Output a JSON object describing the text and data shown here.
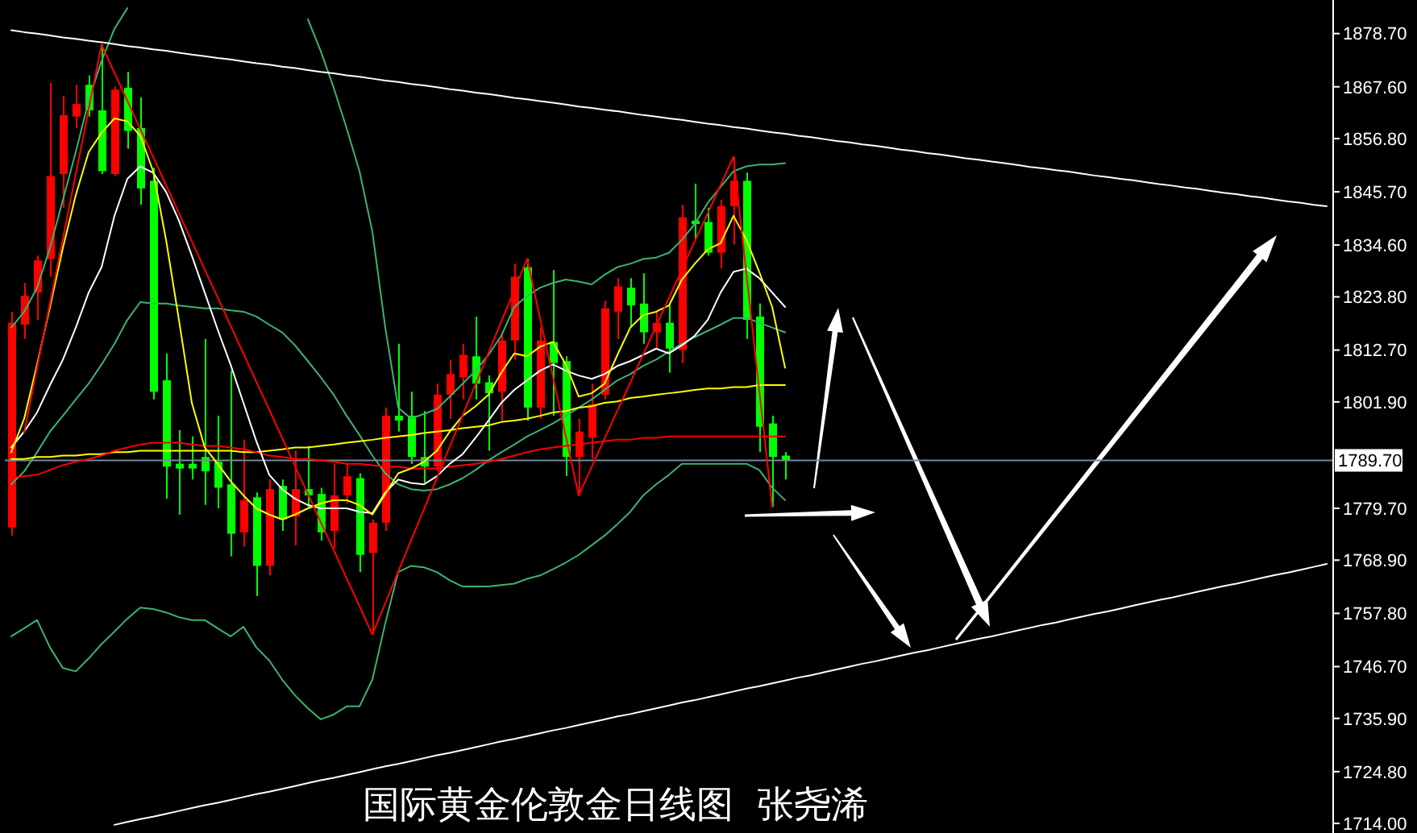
{
  "chart_data": {
    "type": "candlestick",
    "title": "国际黄金伦敦金日线图  张尧浠",
    "categories": [
      null,
      null,
      null,
      null,
      null,
      null,
      null,
      null,
      null,
      null,
      null,
      null,
      null,
      null,
      null,
      null,
      null,
      null,
      null,
      null,
      null,
      null,
      null,
      null,
      null,
      null,
      null,
      null,
      null,
      null,
      null,
      null,
      null,
      null,
      null,
      null,
      null,
      null,
      null,
      null,
      null,
      null,
      null,
      null,
      null,
      null,
      null,
      null,
      null,
      null,
      null,
      null,
      null,
      null,
      null,
      null,
      null,
      null,
      null,
      null,
      null,
      null,
      null,
      null,
      null,
      null,
      null,
      null,
      null,
      null,
      null,
      null,
      null,
      null,
      null,
      null,
      null,
      null,
      null,
      null,
      null,
      null,
      null,
      null,
      null,
      null,
      null,
      null,
      null,
      null,
      null,
      null,
      null,
      null,
      null,
      null,
      null,
      null,
      null,
      null,
      null,
      null,
      null
    ],
    "ohlc": [
      [
        1775.7,
        1820.7,
        1774.0,
        1818.4
      ],
      [
        1818.0,
        1826.7,
        1815.0,
        1824.0
      ],
      [
        1824.7,
        1832.4,
        1819.0,
        1831.4
      ],
      [
        1831.7,
        1868.4,
        1828.0,
        1849.0
      ],
      [
        1849.4,
        1865.7,
        1842.4,
        1861.7
      ],
      [
        1861.4,
        1868.0,
        1859.0,
        1864.0
      ],
      [
        1868.0,
        1870.0,
        1861.4,
        1862.7
      ],
      [
        1862.7,
        1876.4,
        1849.4,
        1850.0
      ],
      [
        1849.4,
        1867.7,
        1849.0,
        1867.0
      ],
      [
        1867.4,
        1870.7,
        1854.7,
        1858.4
      ],
      [
        1859.0,
        1865.4,
        1843.0,
        1846.4
      ],
      [
        1848.0,
        1850.7,
        1802.4,
        1804.0
      ],
      [
        1806.4,
        1812.0,
        1781.7,
        1788.4
      ],
      [
        1789.0,
        1796.0,
        1778.4,
        1788.0
      ],
      [
        1789.0,
        1794.7,
        1785.7,
        1788.0
      ],
      [
        1790.4,
        1815.0,
        1780.4,
        1787.4
      ],
      [
        1789.4,
        1799.0,
        1779.7,
        1784.0
      ],
      [
        1784.7,
        1808.4,
        1769.7,
        1774.4
      ],
      [
        1774.7,
        1794.0,
        1771.7,
        1781.4
      ],
      [
        1782.0,
        1783.0,
        1761.4,
        1767.7
      ],
      [
        1767.7,
        1785.7,
        1765.7,
        1783.7
      ],
      [
        1784.4,
        1785.7,
        1775.0,
        1777.4
      ],
      [
        1778.0,
        1791.7,
        1772.0,
        1783.7
      ],
      [
        1783.7,
        1792.7,
        1780.0,
        1782.4
      ],
      [
        1782.7,
        1784.0,
        1773.0,
        1774.7
      ],
      [
        1775.0,
        1789.0,
        1771.4,
        1782.4
      ],
      [
        1782.4,
        1789.0,
        1780.7,
        1786.4
      ],
      [
        1786.0,
        1787.0,
        1766.4,
        1770.0
      ],
      [
        1770.4,
        1777.4,
        1753.4,
        1776.7
      ],
      [
        1776.7,
        1800.7,
        1775.0,
        1799.0
      ],
      [
        1799.0,
        1814.0,
        1795.7,
        1798.0
      ],
      [
        1799.0,
        1804.0,
        1789.0,
        1790.4
      ],
      [
        1790.4,
        1800.0,
        1785.0,
        1788.4
      ],
      [
        1788.4,
        1805.7,
        1787.4,
        1803.4
      ],
      [
        1803.4,
        1810.7,
        1798.4,
        1807.7
      ],
      [
        1807.0,
        1814.0,
        1802.4,
        1811.7
      ],
      [
        1811.4,
        1819.7,
        1802.4,
        1805.7
      ],
      [
        1806.0,
        1807.4,
        1791.7,
        1803.7
      ],
      [
        1804.0,
        1816.4,
        1798.0,
        1814.7
      ],
      [
        1814.7,
        1830.7,
        1810.7,
        1828.0
      ],
      [
        1830.0,
        1831.7,
        1798.0,
        1800.7
      ],
      [
        1800.7,
        1817.4,
        1798.4,
        1814.7
      ],
      [
        1814.4,
        1829.4,
        1799.0,
        1810.0
      ],
      [
        1810.4,
        1811.4,
        1786.4,
        1790.4
      ],
      [
        1790.4,
        1798.4,
        1782.4,
        1795.7
      ],
      [
        1794.4,
        1805.7,
        1790.0,
        1801.4
      ],
      [
        1803.4,
        1823.0,
        1802.4,
        1821.4
      ],
      [
        1820.7,
        1827.7,
        1815.0,
        1826.0
      ],
      [
        1825.7,
        1827.7,
        1817.4,
        1822.0
      ],
      [
        1822.4,
        1828.7,
        1814.0,
        1816.4
      ],
      [
        1816.4,
        1820.7,
        1813.0,
        1818.4
      ],
      [
        1818.4,
        1822.4,
        1808.0,
        1813.0
      ],
      [
        1812.7,
        1843.0,
        1810.0,
        1840.4
      ],
      [
        1839.7,
        1847.4,
        1835.7,
        1839.0
      ],
      [
        1839.4,
        1842.4,
        1832.4,
        1833.0
      ],
      [
        1833.0,
        1844.0,
        1829.7,
        1842.7
      ],
      [
        1842.7,
        1853.0,
        1834.7,
        1848.0
      ],
      [
        1848.0,
        1849.7,
        1815.0,
        1819.0
      ],
      [
        1819.7,
        1822.4,
        1791.4,
        1796.7
      ],
      [
        1797.4,
        1799.0,
        1780.0,
        1790.4
      ],
      [
        1790.7,
        1791.4,
        1785.7,
        1789.7
      ],
      null,
      null,
      null,
      null,
      null,
      null,
      null,
      null,
      null,
      null,
      null,
      null,
      null,
      null,
      null,
      null,
      null,
      null,
      null,
      null,
      null,
      null,
      null,
      null,
      null,
      null,
      null,
      null,
      null,
      null,
      null,
      null,
      null,
      null,
      null,
      null,
      null,
      null,
      null,
      null,
      null,
      null
    ],
    "colors": [
      "#ff0000",
      "#ff0000",
      "#ff0000",
      "#ff0000",
      "#ff0000",
      "#ff0000",
      "#00ff00",
      "#00ff00",
      "#ff0000",
      "#00ff00",
      "#00ff00",
      "#00ff00",
      "#00ff00",
      "#00ff00",
      "#00ff00",
      "#00ff00",
      "#00ff00",
      "#00ff00",
      "#ff0000",
      "#00ff00",
      "#ff0000",
      "#00ff00",
      "#ff0000",
      "#00ff00",
      "#00ff00",
      "#ff0000",
      "#ff0000",
      "#00ff00",
      "#ff0000",
      "#ff0000",
      "#00ff00",
      "#00ff00",
      "#00ff00",
      "#ff0000",
      "#ff0000",
      "#ff0000",
      "#00ff00",
      "#00ff00",
      "#ff0000",
      "#ff0000",
      "#00ff00",
      "#ff0000",
      "#00ff00",
      "#00ff00",
      "#ff0000",
      "#ff0000",
      "#ff0000",
      "#ff0000",
      "#00ff00",
      "#00ff00",
      "#ff0000",
      "#00ff00",
      "#ff0000",
      "#00ff00",
      "#00ff00",
      "#ff0000",
      "#ff0000",
      "#00ff00",
      "#00ff00",
      "#00ff00",
      "#00ff00",
      null,
      null,
      null,
      null,
      null,
      null,
      null,
      null,
      null,
      null,
      null,
      null,
      null,
      null,
      null,
      null,
      null,
      null,
      null,
      null,
      null,
      null,
      null,
      null,
      null,
      null,
      null,
      null,
      null,
      null,
      null,
      null,
      null,
      null,
      null,
      null,
      null,
      null,
      null,
      null,
      null,
      null
    ],
    "series": [
      {
        "type": "line",
        "color": "#3cb371",
        "values": [
          1817.4,
          1820.7,
          1825.7,
          1834.0,
          1844.0,
          1854.0,
          1864.7,
          1873.0,
          1879.7,
          1884.0,
          null,
          null,
          null,
          null,
          null,
          null,
          null,
          null,
          null,
          null,
          null,
          null,
          null,
          1881.7,
          1875.0,
          1867.4,
          1859.0,
          1850.0,
          1837.4,
          1817.4,
          1800.7,
          1798.4,
          1799.4,
          1800.4,
          1803.0,
          1805.7,
          1808.4,
          1811.7,
          1815.7,
          1821.7,
          1824.0,
          1825.7,
          1826.7,
          1827.4,
          1827.0,
          1826.4,
          1828.4,
          1830.0,
          1830.7,
          1831.7,
          1832.0,
          1833.0,
          1835.7,
          1839.0,
          1843.4,
          1846.7,
          1850.0,
          1851.0,
          1851.4,
          1851.4,
          1851.7,
          null,
          null,
          null,
          null,
          null,
          null,
          null,
          null,
          null,
          null,
          null,
          null,
          null,
          null,
          null,
          null,
          null,
          null,
          null,
          null,
          null,
          null,
          null,
          null,
          null,
          null,
          null,
          null,
          null,
          null,
          null,
          null,
          null,
          null,
          null,
          null,
          null,
          null,
          null,
          null,
          null,
          null
        ]
      },
      {
        "type": "line",
        "color": "#3cb371",
        "values": [
          1784.7,
          1787.4,
          1791.4,
          1795.7,
          1799.0,
          1802.4,
          1805.7,
          1809.7,
          1814.0,
          1819.0,
          1822.7,
          1822.4,
          1822.4,
          1822.0,
          1821.7,
          1821.4,
          1821.4,
          1821.0,
          1820.7,
          1819.7,
          1818.0,
          1816.4,
          1813.7,
          1810.4,
          1807.0,
          1803.4,
          1799.0,
          1795.0,
          1790.7,
          1787.0,
          1784.7,
          1783.7,
          1783.4,
          1783.7,
          1784.7,
          1786.0,
          1787.7,
          1789.7,
          1791.4,
          1793.0,
          1794.7,
          1796.0,
          1797.4,
          1799.0,
          1800.7,
          1802.4,
          1804.4,
          1806.4,
          1807.7,
          1809.4,
          1810.7,
          1812.4,
          1814.0,
          1815.4,
          1816.7,
          1818.0,
          1819.4,
          1819.4,
          1818.4,
          1817.4,
          1816.4,
          null,
          null,
          null,
          null,
          null,
          null,
          null,
          null,
          null,
          null,
          null,
          null,
          null,
          null,
          null,
          null,
          null,
          null,
          null,
          null,
          null,
          null,
          null,
          null,
          null,
          null,
          null,
          null,
          null,
          null,
          null,
          null,
          null,
          null,
          null,
          null,
          null,
          null,
          null,
          null,
          null,
          null
        ]
      },
      {
        "type": "line",
        "color": "#3cb371",
        "values": [
          1753.0,
          1754.7,
          1756.4,
          1750.7,
          1746.4,
          1745.7,
          1748.4,
          1751.4,
          1754.0,
          1756.7,
          1759.0,
          1758.7,
          1758.0,
          1757.0,
          1756.4,
          1756.4,
          1754.7,
          1753.0,
          1755.0,
          1750.7,
          1748.0,
          1744.0,
          1740.7,
          1738.0,
          1735.7,
          1736.7,
          1738.4,
          1738.4,
          1744.0,
          1755.7,
          1766.4,
          1767.7,
          1767.4,
          1766.4,
          1764.7,
          1763.4,
          1763.4,
          1763.4,
          1763.7,
          1764.0,
          1765.0,
          1765.7,
          1767.0,
          1768.4,
          1770.0,
          1772.0,
          1774.0,
          1776.4,
          1779.0,
          1782.4,
          1784.7,
          1786.7,
          1789.0,
          1789.0,
          1789.0,
          1789.0,
          1789.0,
          1789.0,
          1787.7,
          1784.0,
          1781.4,
          null,
          null,
          null,
          null,
          null,
          null,
          null,
          null,
          null,
          null,
          null,
          null,
          null,
          null,
          null,
          null,
          null,
          null,
          null,
          null,
          null,
          null,
          null,
          null,
          null,
          null,
          null,
          null,
          null,
          null,
          null,
          null,
          null,
          null,
          null,
          null,
          null,
          null,
          null,
          null,
          null,
          null
        ]
      },
      {
        "type": "line",
        "color": "#ffff00",
        "values": [
          1790.0,
          1790.0,
          1790.4,
          1790.4,
          1790.7,
          1790.7,
          1791.0,
          1791.0,
          1791.4,
          1791.4,
          1791.7,
          1791.7,
          1791.7,
          1791.7,
          1791.7,
          1791.7,
          1791.7,
          1791.7,
          1791.4,
          1791.4,
          1791.7,
          1792.0,
          1792.4,
          1792.4,
          1792.7,
          1793.0,
          1793.4,
          1793.7,
          1794.0,
          1794.4,
          1794.7,
          1795.0,
          1795.4,
          1795.7,
          1796.0,
          1796.4,
          1796.7,
          1797.0,
          1797.7,
          1798.0,
          1798.4,
          1799.0,
          1799.7,
          1800.0,
          1800.7,
          1801.0,
          1801.7,
          1802.0,
          1802.7,
          1803.0,
          1803.4,
          1803.7,
          1804.0,
          1804.4,
          1804.7,
          1804.7,
          1805.0,
          1805.0,
          1805.4,
          1805.4,
          1805.4,
          null,
          null,
          null,
          null,
          null,
          null,
          null,
          null,
          null,
          null,
          null,
          null,
          null,
          null,
          null,
          null,
          null,
          null,
          null,
          null,
          null,
          null,
          null,
          null,
          null,
          null,
          null,
          null,
          null,
          null,
          null,
          null,
          null,
          null,
          null,
          null,
          null,
          null,
          null,
          null,
          null,
          null
        ]
      },
      {
        "type": "line",
        "color": "#ff0000",
        "values": [
          1786.0,
          1786.4,
          1786.7,
          1787.7,
          1788.7,
          1789.4,
          1790.0,
          1790.7,
          1791.7,
          1792.4,
          1793.0,
          1793.4,
          1793.4,
          1793.4,
          1793.0,
          1792.7,
          1792.7,
          1792.4,
          1792.0,
          1791.4,
          1790.7,
          1790.4,
          1790.0,
          1790.0,
          1789.7,
          1789.4,
          1789.0,
          1789.0,
          1788.7,
          1788.4,
          1788.4,
          1788.0,
          1788.0,
          1788.0,
          1788.4,
          1788.7,
          1789.0,
          1789.4,
          1790.0,
          1790.7,
          1791.4,
          1792.0,
          1792.4,
          1792.7,
          1793.0,
          1793.4,
          1793.7,
          1794.0,
          1794.0,
          1794.4,
          1794.4,
          1794.7,
          1794.7,
          1794.7,
          1794.7,
          1794.7,
          1794.7,
          1794.7,
          1794.7,
          1794.7,
          1794.7,
          null,
          null,
          null,
          null,
          null,
          null,
          null,
          null,
          null,
          null,
          null,
          null,
          null,
          null,
          null,
          null,
          null,
          null,
          null,
          null,
          null,
          null,
          null,
          null,
          null,
          null,
          null,
          null,
          null,
          null,
          null,
          null,
          null,
          null,
          null,
          null,
          null,
          null,
          null,
          null,
          null,
          null
        ]
      },
      {
        "type": "line",
        "color": "#ffffff",
        "values": [
          1792.4,
          1795.7,
          1799.7,
          1805.4,
          1810.7,
          1817.4,
          1824.7,
          1830.0,
          1840.7,
          1848.4,
          1851.0,
          1849.7,
          1845.7,
          1839.7,
          1832.4,
          1824.7,
          1817.0,
          1809.7,
          1801.7,
          1793.7,
          1786.7,
          1783.7,
          1781.7,
          1780.4,
          1779.7,
          1779.7,
          1779.7,
          1779.0,
          1778.7,
          1783.0,
          1785.7,
          1785.0,
          1784.7,
          1786.4,
          1789.0,
          1791.0,
          1794.4,
          1798.0,
          1801.7,
          1804.4,
          1806.4,
          1808.4,
          1809.7,
          1808.4,
          1807.4,
          1806.7,
          1807.7,
          1809.4,
          1810.4,
          1811.7,
          1813.0,
          1812.0,
          1813.7,
          1815.7,
          1819.0,
          1824.7,
          1829.0,
          1829.7,
          1827.7,
          1824.7,
          1821.7,
          null,
          null,
          null,
          null,
          null,
          null,
          null,
          null,
          null,
          null,
          null,
          null,
          null,
          null,
          null,
          null,
          null,
          null,
          null,
          null,
          null,
          null,
          null,
          null,
          null,
          null,
          null,
          null,
          null,
          null,
          null,
          null,
          null,
          null,
          null,
          null,
          null,
          null,
          null,
          null,
          null,
          null
        ]
      },
      {
        "type": "line",
        "color": "#ffff00",
        "values": [
          1791.4,
          1798.4,
          1809.7,
          1821.7,
          1834.0,
          1845.0,
          1854.0,
          1858.0,
          1861.0,
          1860.4,
          1857.4,
          1850.0,
          1835.7,
          1819.0,
          1801.7,
          1792.4,
          1789.0,
          1785.4,
          1782.4,
          1779.7,
          1778.4,
          1777.4,
          1778.4,
          1779.7,
          1780.7,
          1781.4,
          1781.4,
          1780.4,
          1778.4,
          1782.7,
          1787.0,
          1788.0,
          1789.4,
          1791.7,
          1795.7,
          1799.0,
          1801.0,
          1803.4,
          1808.0,
          1812.0,
          1811.4,
          1813.4,
          1814.4,
          1809.7,
          1803.0,
          1803.7,
          1805.7,
          1811.7,
          1817.4,
          1820.0,
          1820.7,
          1822.0,
          1827.4,
          1830.7,
          1833.7,
          1835.0,
          1840.7,
          1835.7,
          1829.0,
          1821.7,
          1809.0,
          null,
          null,
          null,
          null,
          null,
          null,
          null,
          null,
          null,
          null,
          null,
          null,
          null,
          null,
          null,
          null,
          null,
          null,
          null,
          null,
          null,
          null,
          null,
          null,
          null,
          null,
          null,
          null,
          null,
          null,
          null,
          null,
          null,
          null,
          null,
          null,
          null,
          null,
          null,
          null,
          null,
          null
        ]
      },
      {
        "type": "line",
        "color": "#ff0000",
        "values": [
          null,
          1795.5,
          1809.0,
          1822.5,
          1835.9,
          1849.4,
          1862.9,
          1876.4,
          1870.5,
          1864.7,
          1858.8,
          1853.0,
          1847.1,
          1841.3,
          1835.4,
          1829.5,
          1823.7,
          1817.8,
          1812.0,
          1806.1,
          1800.3,
          1794.4,
          1788.5,
          1782.7,
          1776.8,
          1771.0,
          1765.1,
          1759.3,
          1753.4,
          1759.9,
          1766.5,
          1773.0,
          1779.5,
          1786.0,
          1792.6,
          1799.1,
          1805.6,
          1812.1,
          1818.7,
          1825.2,
          1831.7,
          1819.4,
          1807.1,
          1794.7,
          1782.4,
          1788.3,
          1794.2,
          1800.1,
          1805.9,
          1811.8,
          1817.7,
          1823.6,
          1829.5,
          1835.4,
          1841.2,
          1847.1,
          1853.0,
          1828.7,
          1804.3,
          1780.0,
          null,
          null,
          null,
          null,
          null,
          null,
          null,
          null,
          null,
          null,
          null,
          null,
          null,
          null,
          null,
          null,
          null,
          null,
          null,
          null,
          null,
          null,
          null,
          null,
          null,
          null,
          null,
          null,
          null,
          null,
          null,
          null,
          null,
          null,
          null,
          null,
          null,
          null,
          null,
          null,
          null,
          null,
          null
        ]
      },
      {
        "type": "line",
        "color": "#ffffff",
        "values": [
          1879.4,
          1879.0,
          1878.7,
          1878.3,
          1877.9,
          1877.6,
          1877.2,
          1876.9,
          1876.5,
          1876.1,
          1875.8,
          1875.4,
          1875.1,
          1874.7,
          1874.3,
          1874.0,
          1873.6,
          1873.3,
          1872.9,
          1872.5,
          1872.2,
          1871.8,
          1871.5,
          1871.1,
          1870.7,
          1870.4,
          1870.0,
          1869.7,
          1869.3,
          1868.9,
          1868.6,
          1868.2,
          1867.9,
          1867.5,
          1867.1,
          1866.8,
          1866.4,
          1866.1,
          1865.7,
          1865.3,
          1865.0,
          1864.6,
          1864.3,
          1863.9,
          1863.5,
          1863.2,
          1862.8,
          1862.5,
          1862.1,
          1861.7,
          1861.4,
          1861.0,
          1860.7,
          1860.3,
          1859.9,
          1859.6,
          1859.2,
          1858.9,
          1858.5,
          1858.1,
          1857.8,
          1857.4,
          1857.1,
          1856.7,
          1856.3,
          1856.0,
          1855.6,
          1855.3,
          1854.9,
          1854.5,
          1854.2,
          1853.8,
          1853.5,
          1853.1,
          1852.7,
          1852.4,
          1852.0,
          1851.7,
          1851.3,
          1850.9,
          1850.6,
          1850.2,
          1849.9,
          1849.5,
          1849.1,
          1848.8,
          1848.4,
          1848.1,
          1847.7,
          1847.3,
          1847.0,
          1846.6,
          1846.3,
          1845.9,
          1845.5,
          1845.2,
          1844.8,
          1844.5,
          1844.1,
          1843.7,
          1843.4,
          1843.0,
          1842.7
        ]
      },
      {
        "type": "line",
        "color": "#ffffff",
        "values": [
          null,
          null,
          null,
          null,
          null,
          null,
          null,
          null,
          1713.7,
          1714.3,
          1714.9,
          1715.4,
          1716.0,
          1716.6,
          1717.2,
          1717.8,
          1718.3,
          1718.9,
          1719.5,
          1720.1,
          1720.6,
          1721.2,
          1721.8,
          1722.4,
          1723.0,
          1723.5,
          1724.1,
          1724.7,
          1725.3,
          1725.9,
          1726.4,
          1727.0,
          1727.6,
          1728.2,
          1728.7,
          1729.3,
          1729.9,
          1730.5,
          1731.1,
          1731.6,
          1732.2,
          1732.8,
          1733.4,
          1733.9,
          1734.5,
          1735.1,
          1735.7,
          1736.3,
          1736.8,
          1737.4,
          1738.0,
          1738.6,
          1739.2,
          1739.7,
          1740.3,
          1740.9,
          1741.5,
          1742.1,
          1742.6,
          1743.2,
          1743.8,
          1744.4,
          1744.9,
          1745.5,
          1746.1,
          1746.7,
          1747.3,
          1747.8,
          1748.4,
          1749.0,
          1749.6,
          1750.1,
          1750.7,
          1751.3,
          1751.9,
          1752.5,
          1753.0,
          1753.6,
          1754.2,
          1754.8,
          1755.4,
          1755.9,
          1756.5,
          1757.1,
          1757.7,
          1758.2,
          1758.8,
          1759.4,
          1760.0,
          1760.6,
          1761.1,
          1761.7,
          1762.3,
          1762.9,
          1763.5,
          1764.0,
          1764.6,
          1765.2,
          1765.8,
          1766.3,
          1766.9,
          1767.5,
          1768.1
        ]
      }
    ],
    "ylim": [
      1712,
      1885.7
    ],
    "yticks": [
      {
        "value": 1714,
        "label": "1714.00"
      },
      {
        "value": 1724.8,
        "label": "1724.80"
      },
      {
        "value": 1735.9,
        "label": "1735.90"
      },
      {
        "value": 1746.7,
        "label": "1746.70"
      },
      {
        "value": 1757.8,
        "label": "1757.80"
      },
      {
        "value": 1768.9,
        "label": "1768.90"
      },
      {
        "value": 1779.7,
        "label": "1779.70"
      },
      {
        "value": 1801.9,
        "label": "1801.90"
      },
      {
        "value": 1812.7,
        "label": "1812.70"
      },
      {
        "value": 1823.8,
        "label": "1823.80"
      },
      {
        "value": 1834.6,
        "label": "1834.60"
      },
      {
        "value": 1845.7,
        "label": "1845.70"
      },
      {
        "value": 1856.8,
        "label": "1856.80"
      },
      {
        "value": 1867.6,
        "label": "1867.60"
      },
      {
        "value": 1878.7,
        "label": "1878.70"
      }
    ],
    "ref_lines": [
      {
        "axis": "y",
        "value": 1789.7,
        "label": "1789.70",
        "color": "#778899"
      }
    ],
    "tick_labels": "y"
  }
}
